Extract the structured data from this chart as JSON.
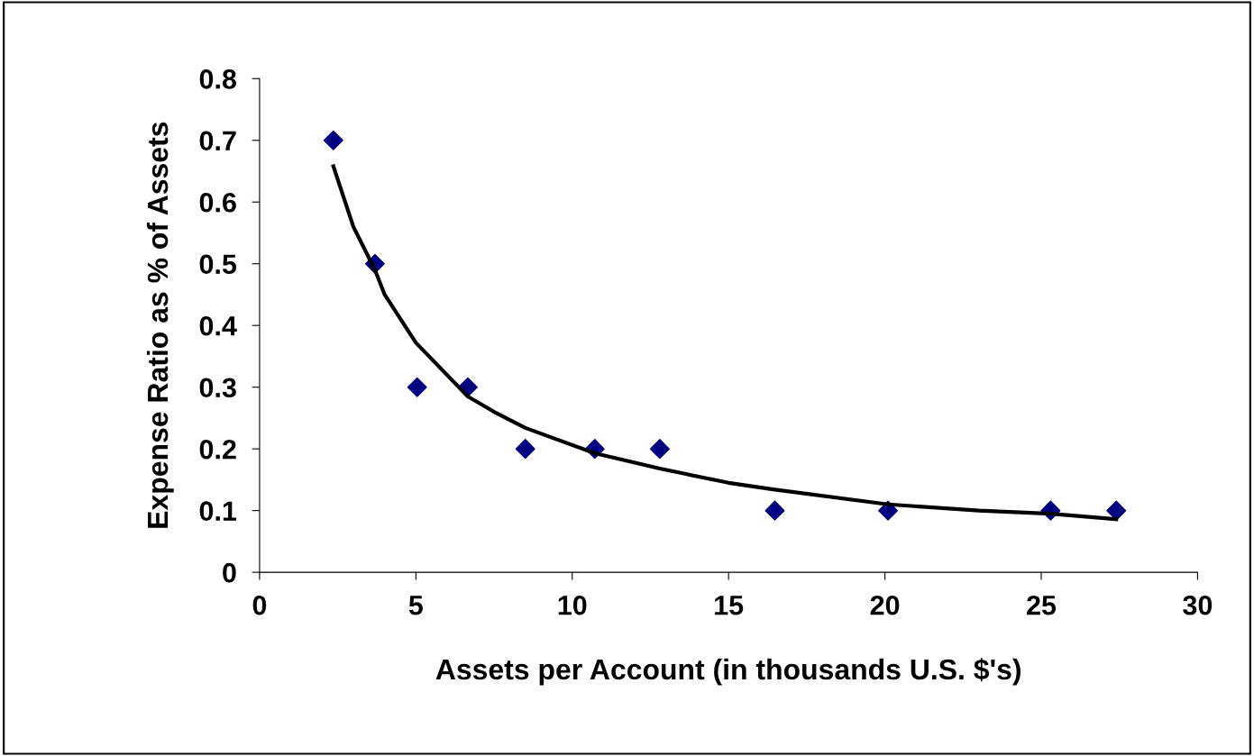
{
  "chart_data": {
    "type": "scatter",
    "xlabel": "Assets per Account (in thousands U.S. $'s)",
    "ylabel": "Expense Ratio as % of Assets",
    "series": [
      {
        "color": "#000080",
        "marker": "diamond",
        "x": [
          2.36,
          3.69,
          5.04,
          6.66,
          8.5,
          10.72,
          12.8,
          16.48,
          20.1,
          25.3,
          27.4
        ],
        "values": [
          0.7,
          0.5,
          0.3,
          0.3,
          0.2,
          0.2,
          0.2,
          0.1,
          0.1,
          0.1,
          0.1
        ]
      },
      {
        "type": "line",
        "color": "#000000",
        "marker": "none",
        "line_style": "solid",
        "x": [
          2.36,
          3.0,
          3.69,
          4.0,
          5.0,
          6.66,
          7.5,
          8.5,
          10.72,
          12.8,
          15.0,
          16.48,
          20.1,
          23.0,
          25.3,
          27.4
        ],
        "values": [
          0.658,
          0.56,
          0.49,
          0.45,
          0.372,
          0.285,
          0.26,
          0.234,
          0.193,
          0.168,
          0.145,
          0.134,
          0.11,
          0.1,
          0.095,
          0.086
        ]
      }
    ],
    "xlim": [
      0,
      30
    ],
    "xticks": [
      0,
      5,
      10,
      15,
      20,
      25,
      30
    ],
    "ylim": [
      0,
      0.8
    ],
    "yticks": [
      0,
      0.1,
      0.2,
      0.3,
      0.4,
      0.5,
      0.6,
      0.7,
      0.8
    ],
    "grid": false,
    "legend": false
  }
}
